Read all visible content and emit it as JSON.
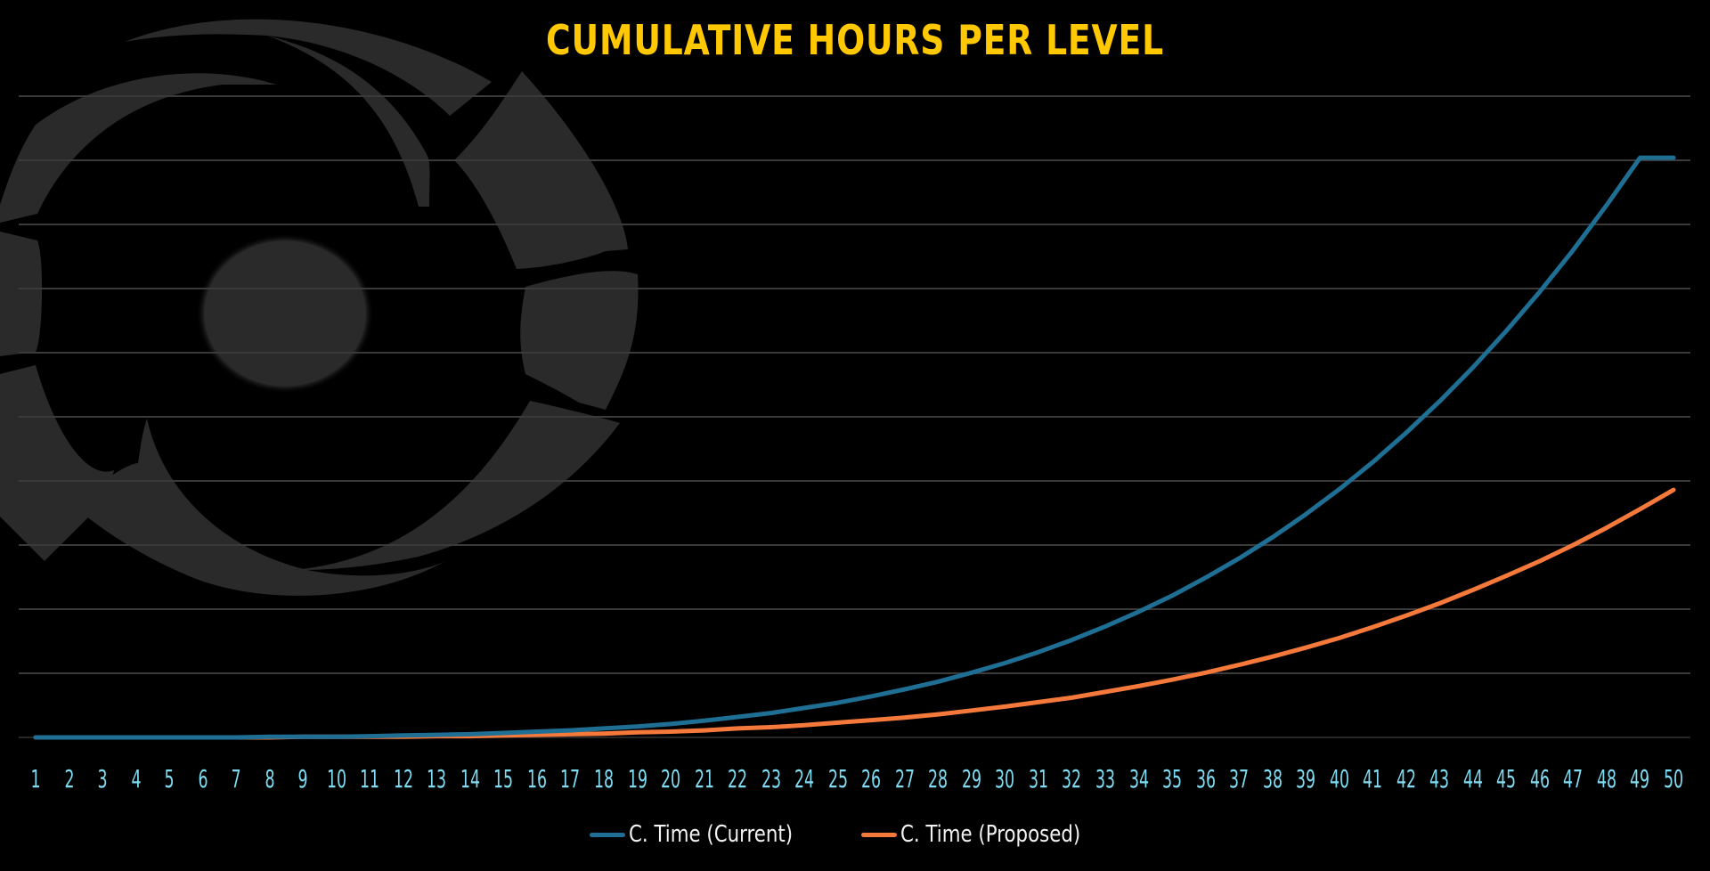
{
  "title": "CUMULATIVE HOURS PER LEVEL",
  "legend": [
    {
      "label": "C. Time (Current)",
      "color": "#1f6e94"
    },
    {
      "label": "C. Time (Proposed)",
      "color": "#f5793a"
    }
  ],
  "colors": {
    "background": "#000000",
    "title": "#ffc800",
    "tick": "#7fdcf2",
    "grid": "#3a3a3a",
    "legend_text": "#f2f2f2",
    "watermark": "#2a2a2a"
  },
  "chart_data": {
    "type": "line",
    "title": "CUMULATIVE HOURS PER LEVEL",
    "xlabel": "",
    "ylabel": "",
    "note": "No y-axis tick labels are shown; values are in gridline units (1 unit = one horizontal gridline step, 10 gridlines above baseline).",
    "ylim": [
      0,
      10
    ],
    "grid": true,
    "legend_position": "bottom",
    "x": [
      1,
      2,
      3,
      4,
      5,
      6,
      7,
      8,
      9,
      10,
      11,
      12,
      13,
      14,
      15,
      16,
      17,
      18,
      19,
      20,
      21,
      22,
      23,
      24,
      25,
      26,
      27,
      28,
      29,
      30,
      31,
      32,
      33,
      34,
      35,
      36,
      37,
      38,
      39,
      40,
      41,
      42,
      43,
      44,
      45,
      46,
      47,
      48,
      49,
      50
    ],
    "series": [
      {
        "name": "C. Time (Current)",
        "color": "#1f6e94",
        "values": [
          0.0,
          0.0,
          0.0,
          0.0,
          0.0,
          0.0,
          0.0,
          0.01,
          0.01,
          0.01,
          0.02,
          0.03,
          0.04,
          0.05,
          0.07,
          0.09,
          0.11,
          0.14,
          0.17,
          0.21,
          0.26,
          0.32,
          0.38,
          0.46,
          0.54,
          0.64,
          0.75,
          0.87,
          1.01,
          1.16,
          1.33,
          1.52,
          1.73,
          1.96,
          2.21,
          2.49,
          2.79,
          3.12,
          3.48,
          3.87,
          4.29,
          4.75,
          5.24,
          5.77,
          6.34,
          6.95,
          7.6,
          8.3,
          9.04,
          9.04
        ]
      },
      {
        "name": "C. Time (Proposed)",
        "color": "#f5793a",
        "values": [
          0.0,
          0.0,
          0.0,
          0.0,
          0.0,
          0.0,
          0.0,
          0.0,
          0.01,
          0.01,
          0.01,
          0.01,
          0.02,
          0.02,
          0.03,
          0.04,
          0.05,
          0.06,
          0.08,
          0.09,
          0.11,
          0.14,
          0.16,
          0.19,
          0.23,
          0.27,
          0.31,
          0.36,
          0.42,
          0.48,
          0.55,
          0.62,
          0.71,
          0.8,
          0.9,
          1.01,
          1.13,
          1.26,
          1.4,
          1.55,
          1.72,
          1.9,
          2.09,
          2.3,
          2.52,
          2.75,
          3.0,
          3.27,
          3.56,
          3.86
        ]
      }
    ]
  }
}
